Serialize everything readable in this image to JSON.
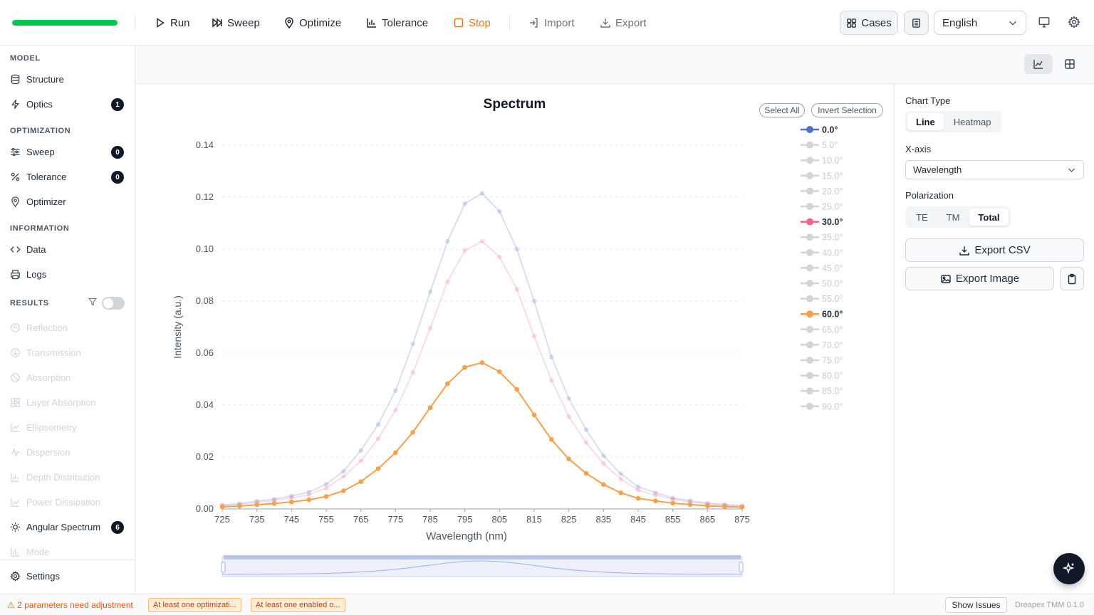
{
  "toolbar": {
    "progress": 1.0,
    "run": "Run",
    "sweep": "Sweep",
    "optimize": "Optimize",
    "tolerance": "Tolerance",
    "stop": "Stop",
    "import": "Import",
    "export": "Export",
    "cases": "Cases",
    "language": "English"
  },
  "sidebar": {
    "model_label": "MODEL",
    "structure": "Structure",
    "optics": "Optics",
    "optics_badge": "1",
    "optimization_label": "OPTIMIZATION",
    "sweep": "Sweep",
    "sweep_badge": "0",
    "tolerance": "Tolerance",
    "tolerance_badge": "0",
    "optimizer": "Optimizer",
    "information_label": "INFORMATION",
    "data": "Data",
    "logs": "Logs",
    "results_label": "RESULTS",
    "results": [
      "Reflection",
      "Transmission",
      "Absorption",
      "Layer Absorption",
      "Ellipsometry",
      "Dispersion",
      "Depth Distribution",
      "Power Dissipation"
    ],
    "angular_spectrum": "Angular Spectrum",
    "angular_badge": "6",
    "mode": "Mode",
    "settings": "Settings"
  },
  "chart": {
    "select_all": "Select All",
    "invert_selection": "Invert Selection"
  },
  "chart_data": {
    "type": "line",
    "title": "Spectrum",
    "xlabel": "Wavelength (nm)",
    "ylabel": "Intensity (a.u.)",
    "xlim": [
      725,
      875
    ],
    "ylim": [
      0,
      0.14
    ],
    "x_ticks": [
      725,
      735,
      745,
      755,
      765,
      775,
      785,
      795,
      805,
      815,
      825,
      835,
      845,
      855,
      865,
      875
    ],
    "y_ticks": [
      "0.00",
      "0.02",
      "0.04",
      "0.06",
      "0.08",
      "0.10",
      "0.12",
      "0.14"
    ],
    "x": [
      725,
      730,
      735,
      740,
      745,
      750,
      755,
      760,
      765,
      770,
      775,
      780,
      785,
      790,
      795,
      800,
      805,
      810,
      815,
      820,
      825,
      830,
      835,
      840,
      845,
      850,
      855,
      860,
      865,
      870,
      875
    ],
    "series": [
      {
        "name": "0.0°",
        "color": "#5470c6",
        "selected": true,
        "faded": true,
        "values": [
          0.0015,
          0.002,
          0.003,
          0.0038,
          0.005,
          0.0065,
          0.0095,
          0.0145,
          0.0225,
          0.0325,
          0.0455,
          0.0635,
          0.0835,
          0.103,
          0.1175,
          0.1215,
          0.1145,
          0.1,
          0.08,
          0.0585,
          0.0425,
          0.0305,
          0.0205,
          0.0135,
          0.0085,
          0.0063,
          0.0042,
          0.0032,
          0.0022,
          0.0017,
          0.0012
        ]
      },
      {
        "name": "5.0°"
      },
      {
        "name": "10.0°"
      },
      {
        "name": "15.0°"
      },
      {
        "name": "20.0°"
      },
      {
        "name": "25.0°"
      },
      {
        "name": "30.0°",
        "color": "#ee6688",
        "selected": true,
        "faded": true,
        "values": [
          0.0012,
          0.0017,
          0.0025,
          0.0032,
          0.0042,
          0.0055,
          0.008,
          0.0125,
          0.0185,
          0.027,
          0.038,
          0.0525,
          0.0695,
          0.0875,
          0.0995,
          0.103,
          0.097,
          0.0845,
          0.0665,
          0.0495,
          0.0355,
          0.0255,
          0.0175,
          0.0115,
          0.0072,
          0.0053,
          0.0037,
          0.0027,
          0.0019,
          0.0014,
          0.001
        ]
      },
      {
        "name": "35.0°"
      },
      {
        "name": "40.0°"
      },
      {
        "name": "45.0°"
      },
      {
        "name": "50.0°"
      },
      {
        "name": "55.0°"
      },
      {
        "name": "60.0°",
        "color": "#f5a04a",
        "selected": true,
        "faded": false,
        "values": [
          0.0008,
          0.0011,
          0.0016,
          0.0021,
          0.0027,
          0.0035,
          0.0048,
          0.007,
          0.0105,
          0.0155,
          0.0217,
          0.0295,
          0.039,
          0.0482,
          0.0545,
          0.0563,
          0.0528,
          0.046,
          0.0362,
          0.0267,
          0.0192,
          0.0137,
          0.0094,
          0.0062,
          0.0041,
          0.0031,
          0.0022,
          0.0017,
          0.0012,
          0.0009,
          0.0007
        ]
      },
      {
        "name": "65.0°"
      },
      {
        "name": "70.0°"
      },
      {
        "name": "75.0°"
      },
      {
        "name": "80.0°"
      },
      {
        "name": "85.0°"
      },
      {
        "name": "90.0°"
      }
    ],
    "legend_position": "right",
    "grid": true
  },
  "panel": {
    "chart_type_label": "Chart Type",
    "chart_types": [
      "Line",
      "Heatmap"
    ],
    "xaxis_label": "X-axis",
    "xaxis_value": "Wavelength",
    "polarization_label": "Polarization",
    "polarizations": [
      "TE",
      "TM",
      "Total"
    ],
    "export_csv": "Export CSV",
    "export_image": "Export Image"
  },
  "status": {
    "warning": "⚠ 2 parameters need adjustment",
    "chip1": "At least one optimizati...",
    "chip2": "At least one enabled o...",
    "show_issues": "Show Issues",
    "version": "Dreapex TMM 0.1.0"
  }
}
